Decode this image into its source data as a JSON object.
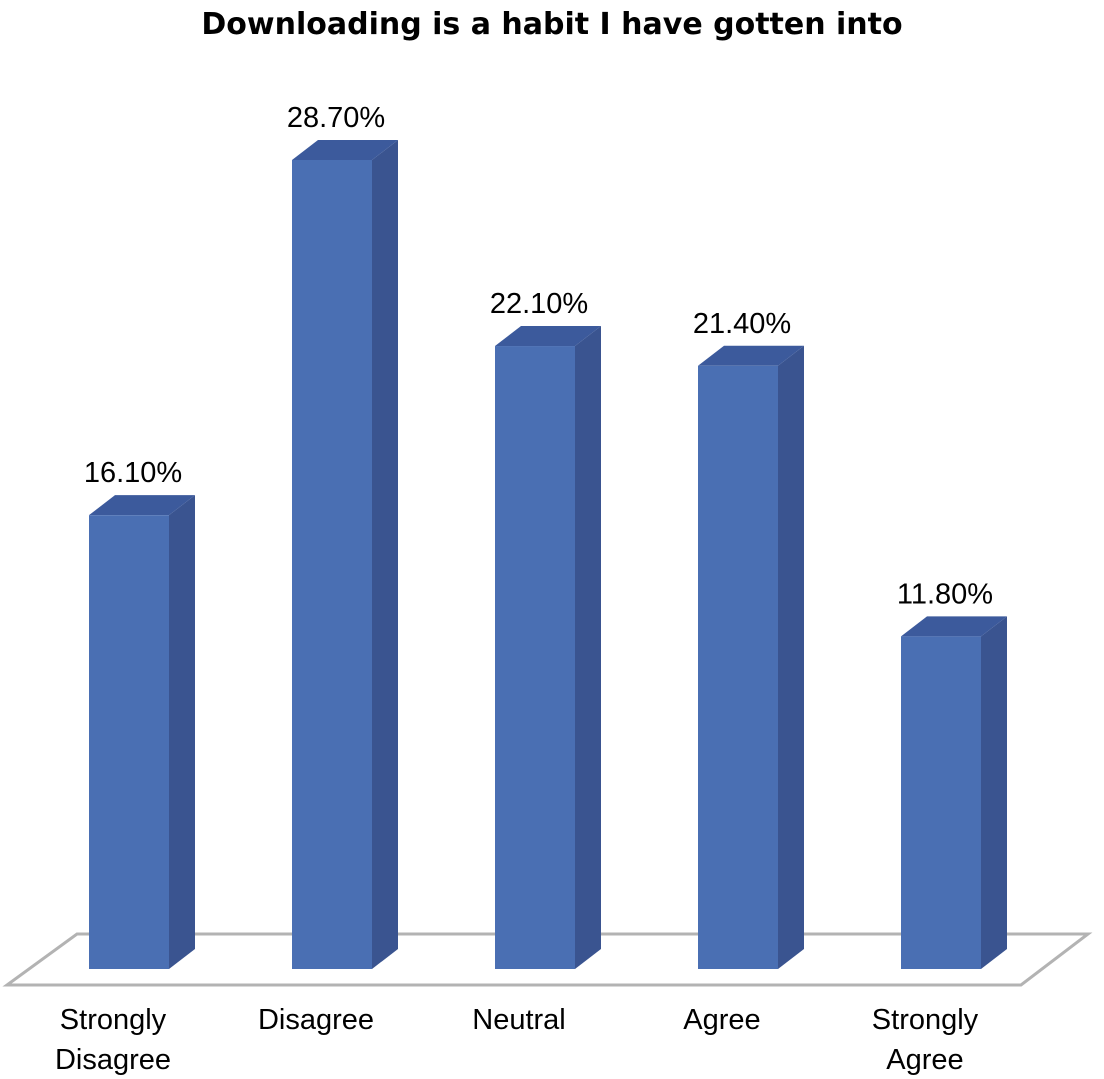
{
  "chart_data": {
    "type": "bar",
    "title": "Downloading is a habit I have gotten into",
    "categories": [
      [
        "Strongly",
        "Disagree"
      ],
      [
        "Disagree"
      ],
      [
        "Neutral"
      ],
      [
        "Agree"
      ],
      [
        "Strongly",
        "Agree"
      ]
    ],
    "values": [
      16.1,
      28.7,
      22.1,
      21.4,
      11.8
    ],
    "data_labels": [
      "16.10%",
      "28.70%",
      "22.10%",
      "21.40%",
      "11.80%"
    ],
    "ylim": [
      0,
      28.7
    ],
    "three_d": true,
    "grid": false,
    "legend": "none",
    "colors": {
      "bar_front": "#4a6fb3",
      "bar_side": "#3a5490",
      "bar_top": "#3c5a9c",
      "floor_stroke": "#b3b3b3"
    }
  }
}
